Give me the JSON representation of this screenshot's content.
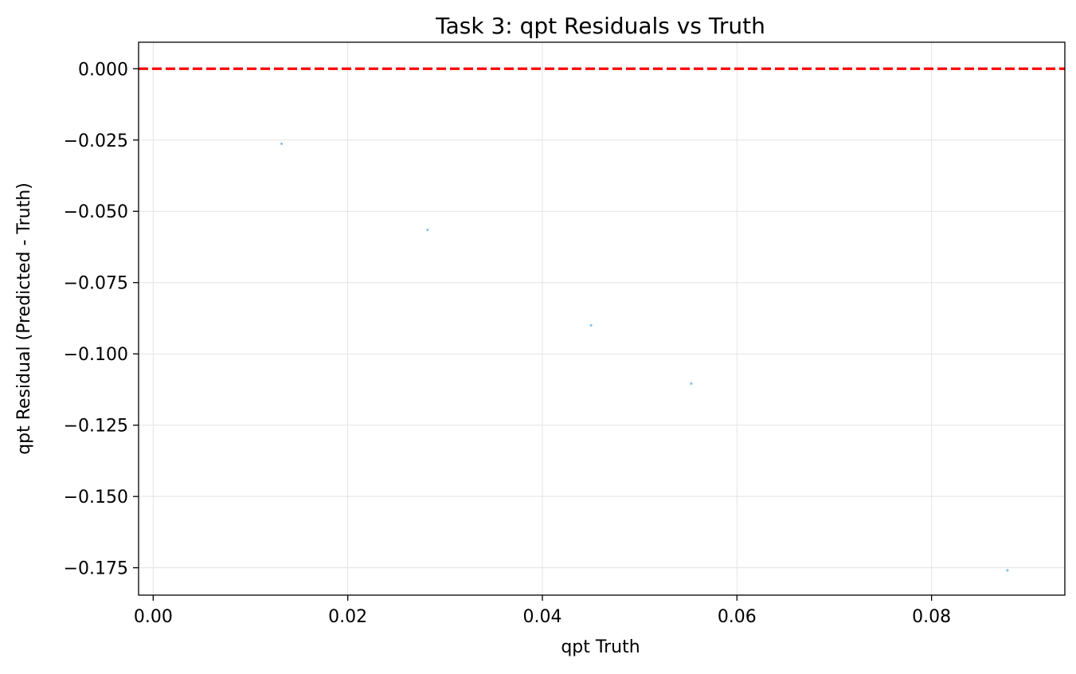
{
  "chart_data": {
    "type": "scatter",
    "title": "Task 3: qpt Residuals vs Truth",
    "xlabel": "qpt Truth",
    "ylabel": "qpt Residual (Predicted - Truth)",
    "xlim": [
      -0.0015,
      0.0937
    ],
    "ylim": [
      -0.1846,
      0.0093
    ],
    "xticks": [
      0.0,
      0.02,
      0.04,
      0.06,
      0.08
    ],
    "xtick_labels": [
      "0.00",
      "0.02",
      "0.04",
      "0.06",
      "0.08"
    ],
    "yticks": [
      0.0,
      -0.025,
      -0.05,
      -0.075,
      -0.1,
      -0.125,
      -0.15,
      -0.175
    ],
    "ytick_labels": [
      "0.000",
      "−0.025",
      "−0.050",
      "−0.075",
      "−0.100",
      "−0.125",
      "−0.150",
      "−0.175"
    ],
    "grid": true,
    "reference_line": {
      "y": 0.0,
      "color": "#ff0000",
      "style": "dashed"
    },
    "series": [
      {
        "color": "#8fc1ea",
        "x": [
          0.0132,
          0.0282,
          0.045,
          0.0553,
          0.0878
        ],
        "y": [
          -0.0263,
          -0.0565,
          -0.09,
          -0.1104,
          -0.1759
        ]
      }
    ]
  }
}
